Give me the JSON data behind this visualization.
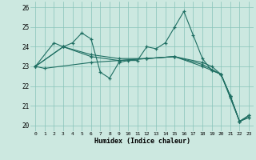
{
  "xlabel": "Humidex (Indice chaleur)",
  "background_color": "#cce8e0",
  "grid_color": "#88c4b8",
  "line_color": "#1e6e62",
  "xlim": [
    -0.5,
    23.5
  ],
  "ylim": [
    19.7,
    26.3
  ],
  "yticks": [
    20,
    21,
    22,
    23,
    24,
    25,
    26
  ],
  "xticks": [
    0,
    1,
    2,
    3,
    4,
    5,
    6,
    7,
    8,
    9,
    10,
    11,
    12,
    13,
    14,
    15,
    16,
    17,
    18,
    19,
    20,
    21,
    22,
    23
  ],
  "series": [
    {
      "x": [
        0,
        2,
        3,
        4,
        5,
        6,
        7,
        8,
        9,
        10,
        11,
        12,
        13,
        14,
        15,
        16,
        17,
        18,
        19,
        20,
        21,
        22,
        23
      ],
      "y": [
        23.0,
        24.2,
        24.0,
        24.2,
        24.7,
        24.4,
        22.7,
        22.4,
        23.2,
        23.3,
        23.3,
        24.0,
        23.9,
        24.2,
        25.0,
        25.8,
        24.6,
        23.4,
        22.8,
        22.6,
        21.5,
        20.2,
        20.5
      ]
    },
    {
      "x": [
        0,
        3,
        6,
        9,
        12,
        15,
        18,
        19,
        20,
        21,
        22,
        23
      ],
      "y": [
        23.0,
        24.0,
        23.6,
        23.4,
        23.4,
        23.5,
        23.0,
        22.8,
        22.6,
        21.5,
        20.2,
        20.4
      ]
    },
    {
      "x": [
        0,
        3,
        6,
        9,
        12,
        15,
        18,
        20,
        21,
        22,
        23
      ],
      "y": [
        23.0,
        24.0,
        23.5,
        23.3,
        23.4,
        23.5,
        23.1,
        22.6,
        21.5,
        20.2,
        20.5
      ]
    },
    {
      "x": [
        0,
        1,
        6,
        9,
        12,
        15,
        18,
        19,
        20,
        21,
        22,
        23
      ],
      "y": [
        23.0,
        22.9,
        23.2,
        23.3,
        23.4,
        23.5,
        23.2,
        23.0,
        22.6,
        21.4,
        20.2,
        20.4
      ]
    }
  ]
}
